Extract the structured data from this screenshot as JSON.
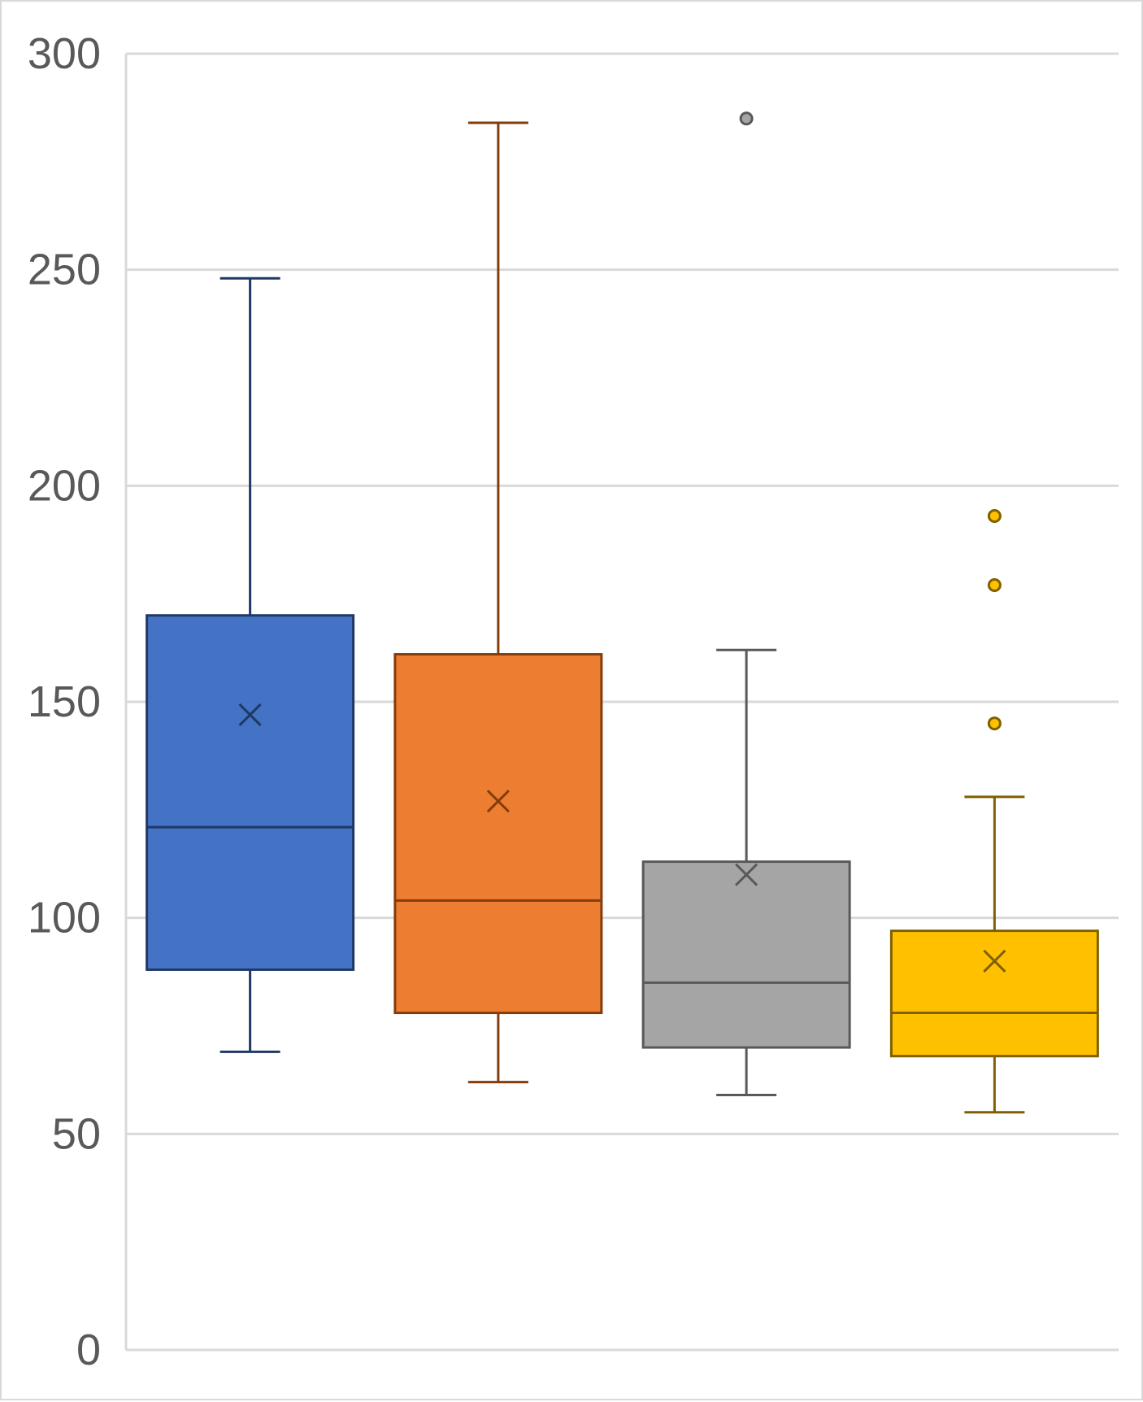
{
  "chart_data": {
    "type": "box",
    "title": "",
    "xlabel": "",
    "ylabel": "",
    "ylim": [
      0,
      300
    ],
    "y_ticks": [
      0,
      50,
      100,
      150,
      200,
      250,
      300
    ],
    "y_tick_labels": [
      "0",
      "50",
      "100",
      "150",
      "200",
      "250",
      "300"
    ],
    "grid": true,
    "legend": "none",
    "series": [
      {
        "min": 69,
        "q1": 88,
        "median": 121,
        "q3": 170,
        "max": 248,
        "mean": 147,
        "outliers": [],
        "fill": "#4472C4",
        "stroke": "#1F3864"
      },
      {
        "min": 62,
        "q1": 78,
        "median": 104,
        "q3": 161,
        "max": 284,
        "mean": 127,
        "outliers": [],
        "fill": "#ED7D31",
        "stroke": "#843C0C"
      },
      {
        "min": 59,
        "q1": 70,
        "median": 85,
        "q3": 113,
        "max": 162,
        "mean": 110,
        "outliers": [
          285
        ],
        "fill": "#A5A5A5",
        "stroke": "#595959"
      },
      {
        "min": 55,
        "q1": 68,
        "median": 78,
        "q3": 97,
        "max": 128,
        "mean": 90,
        "outliers": [
          145,
          177,
          193
        ],
        "fill": "#FFC000",
        "stroke": "#7F6000"
      }
    ]
  },
  "colors": {
    "grid": "#d9d9d9",
    "tick_text": "#595959"
  }
}
